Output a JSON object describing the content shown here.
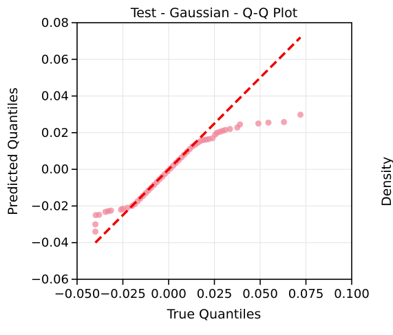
{
  "chart_data": {
    "type": "scatter",
    "title": "Test - Gaussian - Q-Q Plot",
    "xlabel": "True Quantiles",
    "ylabel": "Predicted Quantiles",
    "xlim": [
      -0.05,
      0.1
    ],
    "ylim": [
      -0.06,
      0.08
    ],
    "xticks": [
      -0.05,
      -0.025,
      0.0,
      0.025,
      0.05,
      0.075,
      0.1
    ],
    "xtick_labels": [
      "−0.050",
      "−0.025",
      "0.000",
      "0.025",
      "0.050",
      "0.075",
      "0.100"
    ],
    "yticks": [
      -0.06,
      -0.04,
      -0.02,
      0.0,
      0.02,
      0.04,
      0.06,
      0.08
    ],
    "ytick_labels": [
      "−0.06",
      "−0.04",
      "−0.02",
      "0.00",
      "0.02",
      "0.04",
      "0.06",
      "0.08"
    ],
    "grid": true,
    "point_color": "#f0879b",
    "reference_line": {
      "color": "#ee0000",
      "style": "dashed",
      "x": [
        -0.04,
        0.072
      ],
      "y": [
        -0.04,
        0.072
      ]
    },
    "points": [
      {
        "x": -0.04,
        "y": -0.034
      },
      {
        "x": -0.04,
        "y": -0.03
      },
      {
        "x": -0.0398,
        "y": -0.025
      },
      {
        "x": -0.038,
        "y": -0.0248
      },
      {
        "x": -0.0345,
        "y": -0.0232
      },
      {
        "x": -0.033,
        "y": -0.0228
      },
      {
        "x": -0.0315,
        "y": -0.0225
      },
      {
        "x": -0.026,
        "y": -0.022
      },
      {
        "x": -0.025,
        "y": -0.0215
      },
      {
        "x": -0.0225,
        "y": -0.021
      },
      {
        "x": -0.02,
        "y": -0.02
      },
      {
        "x": -0.0185,
        "y": -0.019
      },
      {
        "x": -0.017,
        "y": -0.0175
      },
      {
        "x": -0.0155,
        "y": -0.016
      },
      {
        "x": -0.014,
        "y": -0.0145
      },
      {
        "x": -0.0125,
        "y": -0.013
      },
      {
        "x": -0.011,
        "y": -0.0115
      },
      {
        "x": -0.0095,
        "y": -0.01
      },
      {
        "x": -0.008,
        "y": -0.0085
      },
      {
        "x": -0.0065,
        "y": -0.007
      },
      {
        "x": -0.005,
        "y": -0.0055
      },
      {
        "x": -0.0035,
        "y": -0.004
      },
      {
        "x": -0.002,
        "y": -0.0025
      },
      {
        "x": -0.0005,
        "y": -0.001
      },
      {
        "x": 0.001,
        "y": 0.0005
      },
      {
        "x": 0.0025,
        "y": 0.002
      },
      {
        "x": 0.004,
        "y": 0.0035
      },
      {
        "x": 0.0055,
        "y": 0.005
      },
      {
        "x": 0.007,
        "y": 0.0065
      },
      {
        "x": 0.0085,
        "y": 0.008
      },
      {
        "x": 0.01,
        "y": 0.0095
      },
      {
        "x": 0.0115,
        "y": 0.011
      },
      {
        "x": 0.013,
        "y": 0.0125
      },
      {
        "x": 0.0145,
        "y": 0.0135
      },
      {
        "x": 0.016,
        "y": 0.0145
      },
      {
        "x": 0.0175,
        "y": 0.0155
      },
      {
        "x": 0.019,
        "y": 0.016
      },
      {
        "x": 0.0205,
        "y": 0.0162
      },
      {
        "x": 0.022,
        "y": 0.0165
      },
      {
        "x": 0.024,
        "y": 0.017
      },
      {
        "x": 0.0255,
        "y": 0.019
      },
      {
        "x": 0.0265,
        "y": 0.02
      },
      {
        "x": 0.028,
        "y": 0.0205
      },
      {
        "x": 0.0295,
        "y": 0.021
      },
      {
        "x": 0.031,
        "y": 0.0215
      },
      {
        "x": 0.0335,
        "y": 0.022
      },
      {
        "x": 0.0375,
        "y": 0.0228
      },
      {
        "x": 0.039,
        "y": 0.0245
      },
      {
        "x": 0.049,
        "y": 0.025
      },
      {
        "x": 0.0545,
        "y": 0.0255
      },
      {
        "x": 0.063,
        "y": 0.0258
      },
      {
        "x": 0.072,
        "y": 0.0298
      }
    ]
  },
  "edge_label": "Density"
}
